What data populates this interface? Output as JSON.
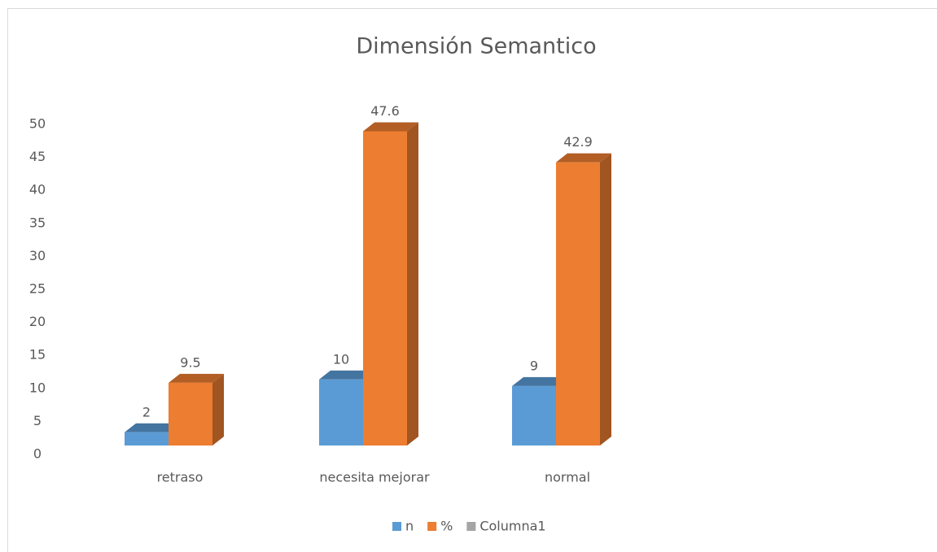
{
  "chart_data": {
    "type": "bar3d",
    "title": "Dimensión Semantico",
    "categories": [
      "retraso",
      "necesita mejorar",
      "normal"
    ],
    "series": [
      {
        "name": "n",
        "color": "#5b9bd5",
        "values": [
          2,
          10,
          9
        ]
      },
      {
        "name": "%",
        "color": "#ed7d31",
        "values": [
          9.5,
          47.6,
          42.9
        ]
      },
      {
        "name": "Columna1",
        "color": "#a5a5a5",
        "values": [
          null,
          null,
          null
        ]
      }
    ],
    "ylim": [
      0,
      50
    ],
    "yticks": [
      0,
      5,
      10,
      15,
      20,
      25,
      30,
      35,
      40,
      45,
      50
    ],
    "grid": false,
    "legend": "bottom"
  }
}
